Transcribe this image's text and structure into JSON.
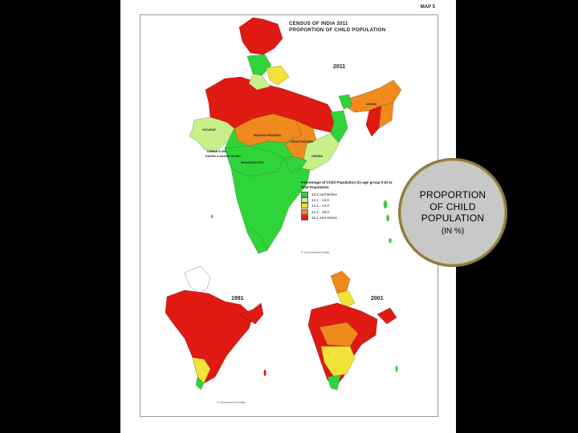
{
  "map_number": "MAP 5",
  "title_line1": "CENSUS OF INDIA 2011",
  "title_line2": "PROPORTION OF CHILD POPULATION",
  "years": {
    "main": "2011",
    "left": "1991",
    "right": "2001"
  },
  "legend": {
    "title": "Percentage of Child Population (in age group 0-6) to total Population",
    "items": [
      {
        "label": "12.0 and Below",
        "color": "#2fd43a"
      },
      {
        "label": "12.1 - 13.0",
        "color": "#c8ef8a"
      },
      {
        "label": "13.1 - 14.0",
        "color": "#f2e23a"
      },
      {
        "label": "14.1 - 15.0",
        "color": "#f08a1c"
      },
      {
        "label": "15.1 and Above",
        "color": "#e01a12"
      }
    ]
  },
  "state_labels": {
    "gujarat": "GUJARAT",
    "madhya_pradesh": "MADHYA PRADESH",
    "maharashtra": "MAHARASHTRA",
    "chhattisgarh": "CHHATTISGARH",
    "odisha": "ODISHA",
    "assam": "ASSAM",
    "daman_diu": "DAMAN & DIU",
    "dadra": "DADRA & NAGAR HAVELI"
  },
  "footnote": "© Government of India",
  "badge": {
    "line1": "PROPORTION",
    "line2": "OF CHILD",
    "line3": "POPULATION",
    "line4": "(IN %)"
  }
}
